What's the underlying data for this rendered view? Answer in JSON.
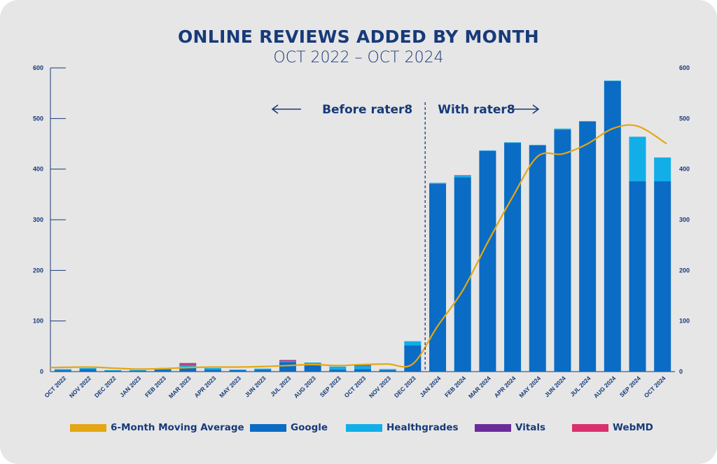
{
  "chart_data": {
    "type": "bar",
    "title": "ONLINE REVIEWS ADDED BY MONTH",
    "subtitle": "OCT 2022 – OCT 2024",
    "categories": [
      "OCT 2022",
      "NOV 2022",
      "DEC 2022",
      "JAN 2023",
      "FEB 2023",
      "MAR 2023",
      "APR 2023",
      "MAY 2023",
      "JUN 2023",
      "JUL 2023",
      "AUG 2023",
      "SEP 2023",
      "OCT 2023",
      "NOV 2023",
      "DEC 2023",
      "JAN 2024",
      "FEB 2024",
      "MAR 2024",
      "APR 2024",
      "MAY 2024",
      "JUN 2024",
      "JUL 2024",
      "AUG 2024",
      "SEP 2024",
      "OCT 2024"
    ],
    "stacked": true,
    "series": [
      {
        "name": "Google",
        "color": "#0a6cc4",
        "values": [
          3,
          5,
          2,
          2,
          4,
          9,
          4,
          3,
          4,
          19,
          13,
          4,
          5,
          3,
          52,
          371,
          384,
          436,
          452,
          447,
          478,
          494,
          574,
          376,
          376
        ]
      },
      {
        "name": "Healthgrades",
        "color": "#12aee8",
        "values": [
          2,
          2,
          1,
          1,
          2,
          4,
          3,
          1,
          2,
          2,
          5,
          6,
          6,
          2,
          8,
          2,
          3,
          1,
          1,
          1,
          2,
          1,
          1,
          88,
          47
        ]
      },
      {
        "name": "Vitals",
        "color": "#6a2c9a",
        "values": [
          0,
          0,
          0,
          0,
          0,
          1,
          0,
          0,
          0,
          1,
          0,
          0,
          1,
          0,
          0,
          0,
          0,
          0,
          0,
          0,
          0,
          0,
          0,
          0,
          0
        ]
      },
      {
        "name": "WebMD",
        "color": "#d9306e",
        "values": [
          0,
          0,
          0,
          0,
          0,
          3,
          0,
          0,
          0,
          1,
          0,
          0,
          2,
          0,
          0,
          0,
          1,
          0,
          0,
          0,
          0,
          0,
          0,
          0,
          0
        ]
      },
      {
        "name": "6-Month Moving Average",
        "type": "line",
        "color": "#e3a714",
        "values": [
          8,
          9,
          7,
          5,
          6,
          8,
          9,
          9,
          10,
          12,
          14,
          12,
          14,
          15,
          15,
          90,
          160,
          255,
          345,
          425,
          430,
          450,
          480,
          485,
          450
        ]
      }
    ],
    "ylim": [
      0,
      600
    ],
    "yticks": [
      0,
      100,
      200,
      300,
      400,
      500,
      600
    ],
    "y2ticks": [
      0,
      100,
      200,
      300,
      400,
      500,
      600
    ],
    "annotations": {
      "before": "Before rater8",
      "after": "With rater8",
      "divider_between": [
        "DEC 2023",
        "JAN 2024"
      ]
    },
    "legend_position": "bottom",
    "legend": [
      "6-Month Moving Average",
      "Google",
      "Healthgrades",
      "Vitals",
      "WebMD"
    ]
  }
}
